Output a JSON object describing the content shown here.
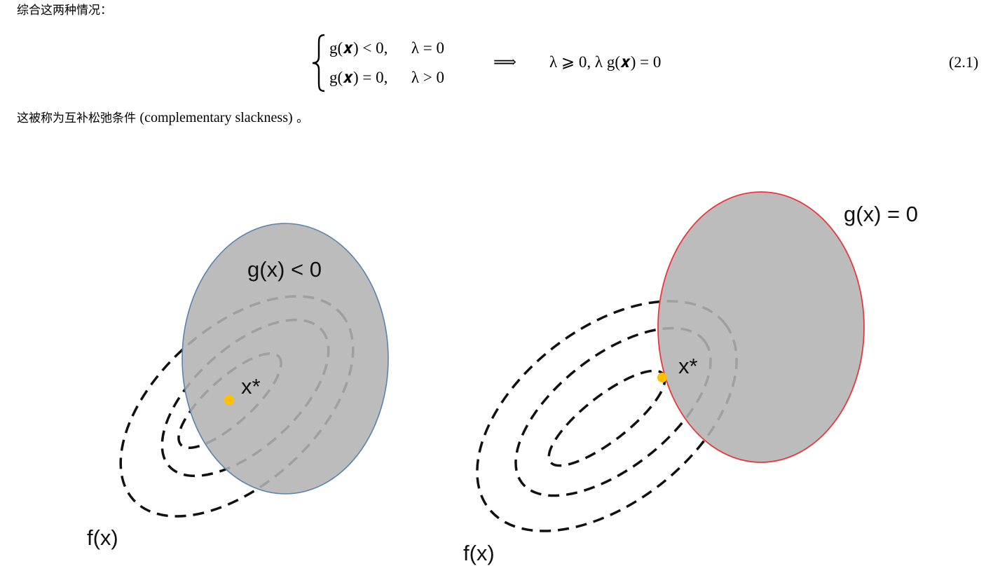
{
  "intro_text": "综合这两种情况：",
  "equation": {
    "case1_lhs": "g(𝒙) < 0,",
    "case1_rhs": "λ = 0",
    "case2_lhs": "g(𝒙) = 0,",
    "case2_rhs": "λ > 0",
    "implies": "⟹",
    "result": "λ ⩾ 0,  λ g(𝒙) = 0",
    "number": "(2.1)"
  },
  "note": {
    "prefix": "这被称为互补松弛条件 ",
    "term": "(complementary slackness)",
    "suffix": " 。"
  },
  "figure": {
    "left_panel": {
      "constraint_label": "g(x) < 0",
      "optimum_label": "x*",
      "objective_label": "f(x)"
    },
    "right_panel": {
      "constraint_label": "g(x) = 0",
      "optimum_label": "x*",
      "objective_label": "f(x)"
    },
    "colors": {
      "region_fill": "#b3b3b3",
      "left_boundary": "#5b82ad",
      "right_boundary": "#e8373d",
      "optimum_point": "#ffc000",
      "contour": "#111111"
    }
  }
}
